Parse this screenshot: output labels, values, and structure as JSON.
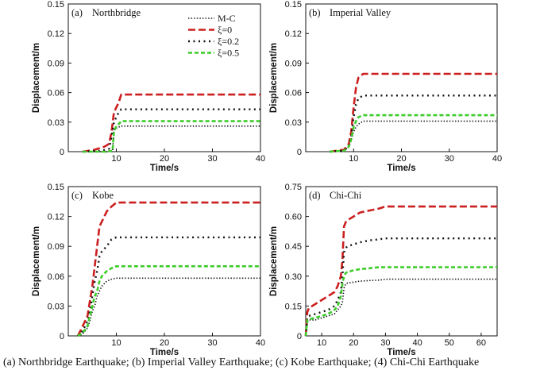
{
  "caption": "(a) Northbridge Earthquake; (b) Imperial Valley Earthquake; (c) Kobe Earthquake; (4) Chi-Chi Earthquake",
  "watermark": "",
  "legend": [
    "M-C",
    "ξ=0",
    "ξ=0.2",
    "ξ=0.5"
  ],
  "series_styles": [
    {
      "color": "#111111",
      "dash": "1.4 2.2",
      "width": 1.6
    },
    {
      "color": "#cc1f1f",
      "dash": "9 4",
      "width": 2.6
    },
    {
      "color": "#111111",
      "dash": "2 4.5",
      "width": 2.4
    },
    {
      "color": "#3dcc2a",
      "dash": "5 3",
      "width": 2.6
    }
  ],
  "chart_data": [
    {
      "type": "line",
      "panel_label": "(a)",
      "title": "Northbridge",
      "xlabel": "Time/s",
      "ylabel": "Displacement/m",
      "xlim": [
        0,
        40
      ],
      "ylim": [
        0,
        0.15
      ],
      "xticks": [
        10,
        20,
        30,
        40
      ],
      "yticks": [
        0.0,
        0.03,
        0.06,
        0.09,
        0.12,
        0.15
      ],
      "ytick_labels": [
        "0",
        "0.03",
        "0.06",
        "0.09",
        "0.12",
        "0.15"
      ],
      "legend_position": "top-right",
      "series": [
        {
          "name": "M-C",
          "x": [
            3,
            8,
            9.2,
            9.5,
            10,
            10.5,
            11,
            40
          ],
          "y": [
            0,
            0,
            0,
            0.022,
            0.024,
            0.025,
            0.026,
            0.026
          ]
        },
        {
          "name": "ξ=0",
          "x": [
            3,
            5.5,
            7.5,
            8.5,
            9,
            9.5,
            10,
            10.5,
            11,
            40
          ],
          "y": [
            0,
            0.002,
            0.005,
            0.008,
            0.02,
            0.04,
            0.045,
            0.05,
            0.058,
            0.058
          ]
        },
        {
          "name": "ξ=0.2",
          "x": [
            3,
            7,
            8.5,
            9,
            9.5,
            10,
            10.5,
            11,
            40
          ],
          "y": [
            0,
            0.001,
            0.003,
            0.015,
            0.03,
            0.035,
            0.04,
            0.043,
            0.043
          ]
        },
        {
          "name": "ξ=0.5",
          "x": [
            3,
            8,
            9.2,
            9.5,
            10,
            10.5,
            11,
            40
          ],
          "y": [
            0,
            0,
            0.001,
            0.02,
            0.026,
            0.028,
            0.031,
            0.031
          ]
        }
      ]
    },
    {
      "type": "line",
      "panel_label": "(b)",
      "title": "Imperial Valley",
      "xlabel": "Time/s",
      "ylabel": "Displacement/m",
      "xlim": [
        0,
        40
      ],
      "ylim": [
        0,
        0.15
      ],
      "xticks": [
        10,
        20,
        30,
        40
      ],
      "yticks": [
        0.0,
        0.03,
        0.06,
        0.09,
        0.12,
        0.15
      ],
      "ytick_labels": [
        "0",
        "0.03",
        "0.06",
        "0.09",
        "0.12",
        "0.15"
      ],
      "series": [
        {
          "name": "M-C",
          "x": [
            5,
            8,
            9,
            9.5,
            10,
            10.5,
            11,
            12,
            40
          ],
          "y": [
            0,
            0.001,
            0.005,
            0.012,
            0.02,
            0.025,
            0.028,
            0.031,
            0.031
          ]
        },
        {
          "name": "ξ=0",
          "x": [
            5,
            8,
            9,
            9.5,
            10,
            10.5,
            11,
            12,
            40
          ],
          "y": [
            0,
            0.002,
            0.008,
            0.02,
            0.045,
            0.065,
            0.075,
            0.079,
            0.079
          ]
        },
        {
          "name": "ξ=0.2",
          "x": [
            5,
            8,
            9,
            9.5,
            10,
            10.5,
            11,
            12,
            40
          ],
          "y": [
            0,
            0.001,
            0.006,
            0.015,
            0.035,
            0.048,
            0.054,
            0.057,
            0.057
          ]
        },
        {
          "name": "ξ=0.5",
          "x": [
            5,
            8,
            9,
            9.5,
            10,
            10.5,
            11,
            12,
            40
          ],
          "y": [
            0,
            0.001,
            0.005,
            0.012,
            0.025,
            0.031,
            0.035,
            0.037,
            0.037
          ]
        }
      ]
    },
    {
      "type": "line",
      "panel_label": "(c)",
      "title": "Kobe",
      "xlabel": "Time/s",
      "ylabel": "Displacement/m",
      "xlim": [
        0,
        40
      ],
      "ylim": [
        0,
        0.15
      ],
      "xticks": [
        10,
        20,
        30,
        40
      ],
      "yticks": [
        0.0,
        0.03,
        0.06,
        0.09,
        0.12,
        0.15
      ],
      "ytick_labels": [
        "0",
        "0.03",
        "0.06",
        "0.09",
        "0.12",
        "0.15"
      ],
      "series": [
        {
          "name": "M-C",
          "x": [
            2,
            3,
            4,
            4.5,
            5,
            5.5,
            6,
            6.5,
            7,
            8,
            9,
            10,
            40
          ],
          "y": [
            0,
            0.002,
            0.008,
            0.015,
            0.025,
            0.03,
            0.04,
            0.045,
            0.05,
            0.055,
            0.057,
            0.058,
            0.058
          ]
        },
        {
          "name": "ξ=0",
          "x": [
            2,
            3,
            4,
            4.5,
            5,
            5.5,
            6,
            6.5,
            7,
            7.5,
            8,
            9,
            10,
            11,
            40
          ],
          "y": [
            0,
            0.01,
            0.02,
            0.035,
            0.05,
            0.07,
            0.09,
            0.11,
            0.115,
            0.12,
            0.125,
            0.13,
            0.134,
            0.134,
            0.134
          ]
        },
        {
          "name": "ξ=0.2",
          "x": [
            2,
            3,
            4,
            4.5,
            5,
            5.5,
            6,
            6.5,
            7,
            8,
            9,
            10,
            40
          ],
          "y": [
            0,
            0.005,
            0.015,
            0.025,
            0.04,
            0.055,
            0.065,
            0.08,
            0.085,
            0.09,
            0.097,
            0.099,
            0.099
          ]
        },
        {
          "name": "ξ=0.5",
          "x": [
            2,
            3,
            4,
            4.5,
            5,
            5.5,
            6,
            6.5,
            7,
            8,
            9,
            10,
            40
          ],
          "y": [
            0,
            0.003,
            0.01,
            0.02,
            0.03,
            0.04,
            0.045,
            0.055,
            0.06,
            0.065,
            0.068,
            0.07,
            0.07
          ]
        }
      ]
    },
    {
      "type": "line",
      "panel_label": "(d)",
      "title": "Chi-Chi",
      "xlabel": "Time/s",
      "ylabel": "Displacement/m",
      "xlim": [
        5,
        65
      ],
      "ylim": [
        0,
        0.75
      ],
      "xticks": [
        10,
        20,
        30,
        40,
        50,
        60
      ],
      "yticks": [
        0.0,
        0.15,
        0.3,
        0.45,
        0.6,
        0.75
      ],
      "ytick_labels": [
        "0",
        "0.15",
        "0.30",
        "0.45",
        "0.60",
        "0.75"
      ],
      "series": [
        {
          "name": "M-C",
          "x": [
            5,
            5.5,
            6,
            8,
            10,
            12,
            14,
            15,
            16,
            16.5,
            17,
            17.5,
            18,
            20,
            22,
            25,
            28,
            30,
            65
          ],
          "y": [
            0,
            0.07,
            0.08,
            0.08,
            0.09,
            0.1,
            0.11,
            0.13,
            0.15,
            0.17,
            0.24,
            0.26,
            0.265,
            0.27,
            0.275,
            0.278,
            0.28,
            0.285,
            0.285
          ]
        },
        {
          "name": "ξ=0",
          "x": [
            5,
            5.5,
            6,
            8,
            10,
            12,
            14,
            15,
            16,
            16.5,
            17,
            17.5,
            18,
            20,
            22,
            25,
            28,
            30,
            65
          ],
          "y": [
            0,
            0.12,
            0.14,
            0.16,
            0.18,
            0.2,
            0.22,
            0.25,
            0.3,
            0.38,
            0.55,
            0.57,
            0.58,
            0.6,
            0.62,
            0.63,
            0.64,
            0.65,
            0.65
          ]
        },
        {
          "name": "ξ=0.2",
          "x": [
            5,
            5.5,
            6,
            8,
            10,
            12,
            14,
            15,
            16,
            16.5,
            17,
            17.5,
            18,
            20,
            22,
            25,
            28,
            30,
            65
          ],
          "y": [
            0,
            0.09,
            0.1,
            0.11,
            0.12,
            0.13,
            0.15,
            0.18,
            0.22,
            0.3,
            0.42,
            0.44,
            0.45,
            0.46,
            0.47,
            0.48,
            0.485,
            0.49,
            0.49
          ]
        },
        {
          "name": "ξ=0.5",
          "x": [
            5,
            5.5,
            6,
            8,
            10,
            12,
            14,
            15,
            16,
            16.5,
            17,
            17.5,
            18,
            20,
            22,
            25,
            28,
            30,
            65
          ],
          "y": [
            0,
            0.08,
            0.085,
            0.09,
            0.1,
            0.11,
            0.13,
            0.15,
            0.2,
            0.26,
            0.3,
            0.315,
            0.32,
            0.33,
            0.335,
            0.34,
            0.345,
            0.345,
            0.345
          ]
        }
      ]
    }
  ]
}
